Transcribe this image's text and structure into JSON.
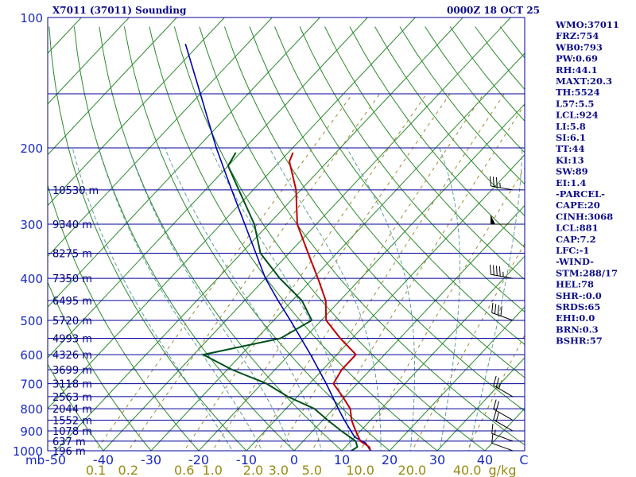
{
  "header": {
    "station": "X7011 (37011) Sounding",
    "time": "0000Z 18 OCT 25"
  },
  "indices": [
    "WMO:37011",
    "FRZ:754",
    "WB0:793",
    "PW:0.69",
    "RH:44.1",
    "MAXT:20.3",
    "TH:5524",
    "L57:5.5",
    "LCL:924",
    "LI:5.8",
    "SI:6.1",
    "TT:44",
    "KI:13",
    "SW:89",
    "EI:1.4",
    "-PARCEL-",
    "CAPE:20",
    "CINH:3068",
    "LCL:881",
    "CAP:7.2",
    "LFC:-1",
    "-WIND-",
    "STM:288/17",
    "HEL:78",
    "SHR-:0.0",
    "SRDS:65",
    "EHI:0.0",
    "BRN:0.3",
    "BSHR:57"
  ],
  "colors": {
    "frame": "#00009a",
    "isobar": "#00009a",
    "isotherm": "#2a8a2a",
    "dry_adiabat": "#2a8a2a",
    "moist_adiabat": "#5f9ea0",
    "mixing_ratio": "#9a8a30",
    "temperature": "#c00000",
    "dewpoint": "#00501c",
    "parcel": "#0000b0",
    "wind_barb": "#000000"
  },
  "chart_data": {
    "type": "skew-T log-p sounding",
    "title": "X7011 (37011) Sounding",
    "pressure_unit": "mb",
    "temperature_unit": "C",
    "pressure_range": [
      1000,
      100
    ],
    "temperature_range": [
      -50,
      50
    ],
    "pressure_ticks": [
      "100",
      "200",
      "300",
      "400",
      "500",
      "600",
      "700",
      "800",
      "900",
      "1000"
    ],
    "pressure_label": "mb",
    "temperature_ticks": [
      "-50",
      "-40",
      "-30",
      "-20",
      "-10",
      "0",
      "10",
      "20",
      "30",
      "40"
    ],
    "temperature_label": "C",
    "mixing_ratio_labels": [
      "0.1",
      "0.2",
      "0.6",
      "1.0",
      "2.0",
      "3.0",
      "5.0",
      "10.0",
      "20.0",
      "40.0"
    ],
    "mixing_ratio_unit": "g/kg",
    "isobars": [
      1000,
      950,
      900,
      850,
      800,
      750,
      700,
      650,
      600,
      550,
      500,
      450,
      400,
      350,
      300,
      250,
      200,
      150
    ],
    "heights": [
      {
        "p": 1000,
        "label": "196 m"
      },
      {
        "p": 950,
        "label": "637 m"
      },
      {
        "p": 900,
        "label": "1078 m"
      },
      {
        "p": 850,
        "label": "1552 m"
      },
      {
        "p": 800,
        "label": "2044 m"
      },
      {
        "p": 750,
        "label": "2563 m"
      },
      {
        "p": 700,
        "label": "3118 m"
      },
      {
        "p": 650,
        "label": "3699 m"
      },
      {
        "p": 600,
        "label": "4326 m"
      },
      {
        "p": 550,
        "label": "4993 m"
      },
      {
        "p": 500,
        "label": "5720 m"
      },
      {
        "p": 450,
        "label": "6495 m"
      },
      {
        "p": 400,
        "label": "7350 m"
      },
      {
        "p": 350,
        "label": "8275 m"
      },
      {
        "p": 300,
        "label": "9340 m"
      },
      {
        "p": 250,
        "label": "10530 m"
      }
    ],
    "temperature_profile": [
      {
        "p": 1000,
        "t": 16
      },
      {
        "p": 980,
        "t": 15
      },
      {
        "p": 950,
        "t": 12
      },
      {
        "p": 900,
        "t": 9
      },
      {
        "p": 850,
        "t": 6
      },
      {
        "p": 800,
        "t": 3.5
      },
      {
        "p": 750,
        "t": -0.5
      },
      {
        "p": 700,
        "t": -5
      },
      {
        "p": 650,
        "t": -6
      },
      {
        "p": 600,
        "t": -6
      },
      {
        "p": 550,
        "t": -12.5
      },
      {
        "p": 500,
        "t": -19
      },
      {
        "p": 450,
        "t": -23
      },
      {
        "p": 420,
        "t": -26.5
      },
      {
        "p": 400,
        "t": -29
      },
      {
        "p": 350,
        "t": -36
      },
      {
        "p": 300,
        "t": -44
      },
      {
        "p": 250,
        "t": -51
      },
      {
        "p": 215,
        "t": -58
      },
      {
        "p": 205,
        "t": -59
      }
    ],
    "dewpoint_profile": [
      {
        "p": 1000,
        "t": 12
      },
      {
        "p": 980,
        "t": 12.5
      },
      {
        "p": 950,
        "t": 11
      },
      {
        "p": 900,
        "t": 6
      },
      {
        "p": 850,
        "t": 1
      },
      {
        "p": 800,
        "t": -4
      },
      {
        "p": 750,
        "t": -12
      },
      {
        "p": 700,
        "t": -19
      },
      {
        "p": 650,
        "t": -29
      },
      {
        "p": 600,
        "t": -38
      },
      {
        "p": 550,
        "t": -25
      },
      {
        "p": 500,
        "t": -22
      },
      {
        "p": 450,
        "t": -28
      },
      {
        "p": 400,
        "t": -37
      },
      {
        "p": 350,
        "t": -46
      },
      {
        "p": 300,
        "t": -53
      },
      {
        "p": 250,
        "t": -63
      },
      {
        "p": 220,
        "t": -70
      },
      {
        "p": 205,
        "t": -71
      }
    ],
    "parcel_profile": [
      {
        "p": 1000,
        "t": 16
      },
      {
        "p": 960,
        "t": 13.5
      },
      {
        "p": 930,
        "t": 10
      },
      {
        "p": 900,
        "t": 8
      },
      {
        "p": 850,
        "t": 4.5
      },
      {
        "p": 800,
        "t": 1
      },
      {
        "p": 700,
        "t": -6.5
      },
      {
        "p": 600,
        "t": -15.5
      },
      {
        "p": 500,
        "t": -26.5
      },
      {
        "p": 450,
        "t": -33
      },
      {
        "p": 400,
        "t": -40
      },
      {
        "p": 300,
        "t": -55
      },
      {
        "p": 250,
        "t": -64.5
      },
      {
        "p": 200,
        "t": -76
      },
      {
        "p": 150,
        "t": -90
      },
      {
        "p": 115,
        "t": -103
      }
    ],
    "wind_profile": [
      {
        "p": 1000,
        "dir": 290,
        "spd": 10
      },
      {
        "p": 950,
        "dir": 290,
        "spd": 15
      },
      {
        "p": 900,
        "dir": 300,
        "spd": 20
      },
      {
        "p": 850,
        "dir": 300,
        "spd": 20
      },
      {
        "p": 750,
        "dir": 300,
        "spd": 25
      },
      {
        "p": 500,
        "dir": 290,
        "spd": 40
      },
      {
        "p": 400,
        "dir": 280,
        "spd": 45
      },
      {
        "p": 300,
        "dir": 270,
        "spd": 50
      },
      {
        "p": 250,
        "dir": 280,
        "spd": 35
      }
    ]
  }
}
